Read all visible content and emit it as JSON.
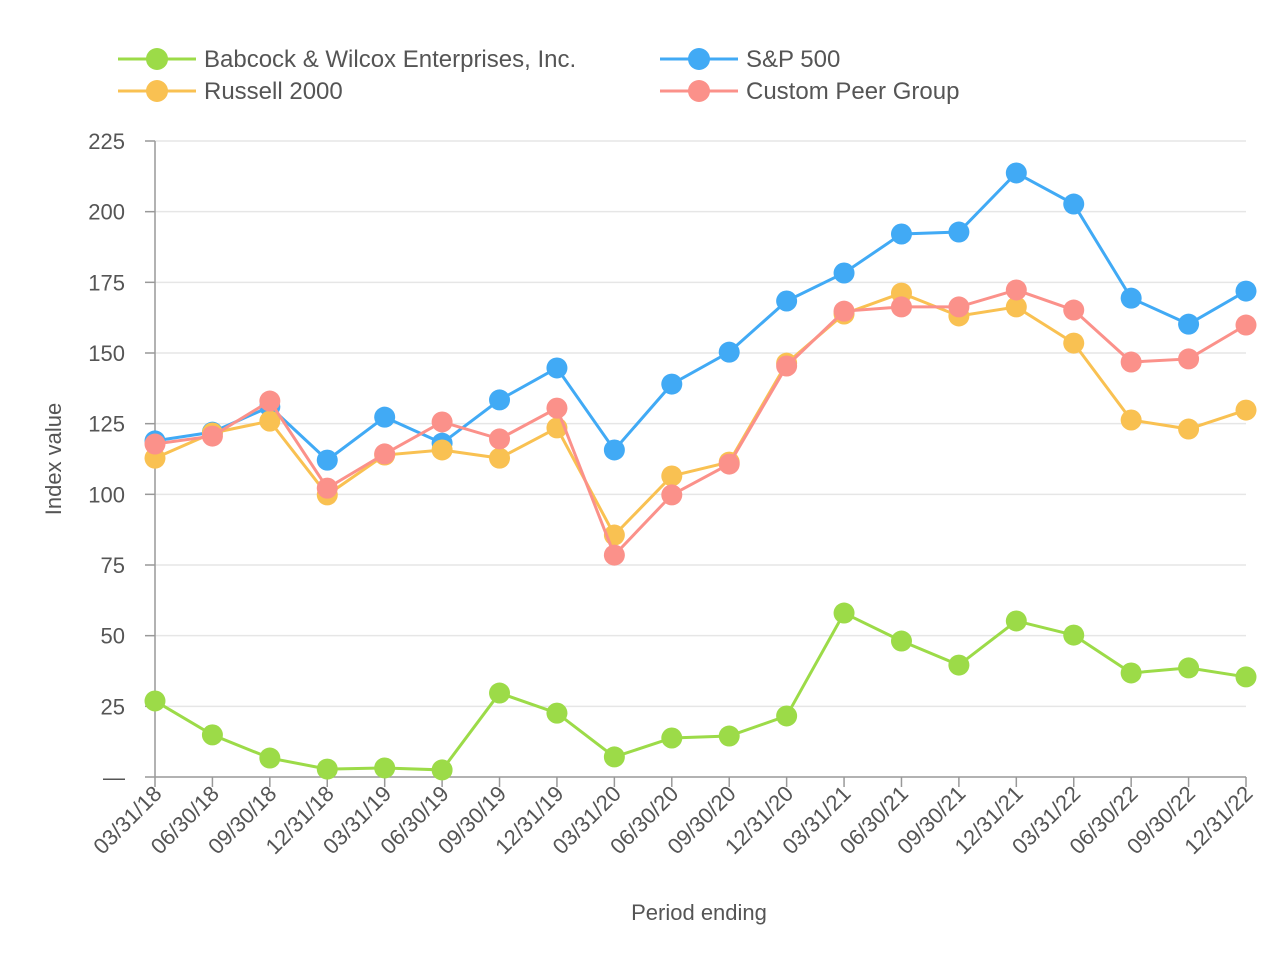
{
  "chart_data": {
    "type": "line",
    "title": "",
    "xlabel": "Period ending",
    "ylabel": "Index value",
    "ylim": [
      0,
      225
    ],
    "yticks": [
      0,
      25,
      50,
      75,
      100,
      125,
      150,
      175,
      200,
      225
    ],
    "ytick_labels": [
      "—",
      "25",
      "50",
      "75",
      "100",
      "125",
      "150",
      "175",
      "200",
      "225"
    ],
    "grid": true,
    "legend_position": "top",
    "categories": [
      "03/31/18",
      "06/30/18",
      "09/30/18",
      "12/31/18",
      "03/31/19",
      "06/30/19",
      "09/30/19",
      "12/31/19",
      "03/31/20",
      "06/30/20",
      "09/30/20",
      "12/31/20",
      "03/31/21",
      "06/30/21",
      "09/30/21",
      "12/31/21",
      "03/31/22",
      "06/30/22",
      "09/30/22",
      "12/31/22"
    ],
    "series": [
      {
        "name": "Babcock & Wilcox Enterprises, Inc.",
        "color": "#9cdb48",
        "values": [
          26.9,
          14.9,
          6.7,
          2.8,
          3.2,
          2.5,
          29.7,
          22.6,
          7.1,
          13.8,
          14.5,
          21.6,
          58.0,
          48.1,
          39.6,
          55.2,
          50.2,
          36.8,
          38.6,
          35.4
        ]
      },
      {
        "name": "S&P 500",
        "color": "#41aaf5",
        "values": [
          118.9,
          122.0,
          131.0,
          112.1,
          127.3,
          118.1,
          133.4,
          144.7,
          115.7,
          139.0,
          150.3,
          168.4,
          178.3,
          192.1,
          192.8,
          213.7,
          202.7,
          169.4,
          160.2,
          171.9
        ]
      },
      {
        "name": "Russell 2000",
        "color": "#f9c152",
        "values": [
          112.8,
          121.7,
          125.9,
          99.8,
          113.9,
          115.7,
          112.8,
          123.5,
          85.6,
          106.5,
          111.4,
          146.4,
          163.8,
          171.2,
          163.1,
          166.3,
          153.5,
          126.3,
          123.1,
          129.8
        ]
      },
      {
        "name": "Custom Peer Group",
        "color": "#fb918a",
        "values": [
          117.8,
          120.6,
          133.0,
          102.2,
          114.3,
          125.6,
          119.6,
          130.5,
          78.5,
          99.8,
          110.7,
          145.4,
          164.8,
          166.3,
          166.3,
          172.3,
          165.2,
          146.8,
          147.9,
          159.9
        ]
      }
    ]
  }
}
